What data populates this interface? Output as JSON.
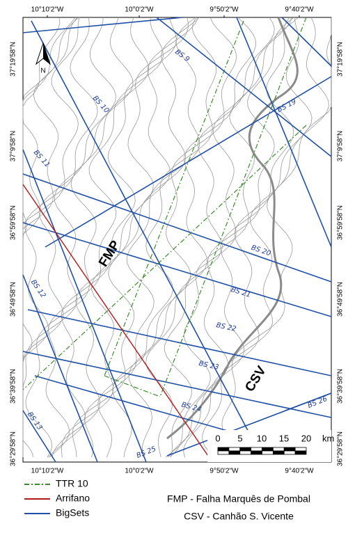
{
  "map": {
    "lon_labels": [
      "10°10'2\"W",
      "10°0'2\"W",
      "9°50'2\"W",
      "9°40'2\"W"
    ],
    "lat_labels": [
      "37°19'58\"N",
      "37°9'58\"N",
      "36°59'58\"N",
      "36°49'58\"N",
      "36°39'58\"N",
      "36°29'58\"N"
    ],
    "north": "N",
    "line_labels": [
      "BS 9",
      "BS 10",
      "BS 11",
      "BS 12",
      "BS 13",
      "BS 19",
      "BS 20",
      "BS 21",
      "BS 22",
      "BS 23",
      "BS 24",
      "BS 25",
      "BS 26"
    ],
    "features": [
      "FMP",
      "CSV"
    ],
    "scale": {
      "ticks": [
        "0",
        "5",
        "10",
        "15",
        "20"
      ],
      "unit": "km"
    }
  },
  "legend": [
    {
      "label": "TTR 10",
      "color": "#3a8a2a"
    },
    {
      "label": "Arrifano",
      "color": "#b01818"
    },
    {
      "label": "BigSets",
      "color": "#1f4fa8"
    }
  ],
  "notes": [
    "FMP - Falha Marquês de Pombal",
    "CSV - Canhão S. Vicente"
  ]
}
